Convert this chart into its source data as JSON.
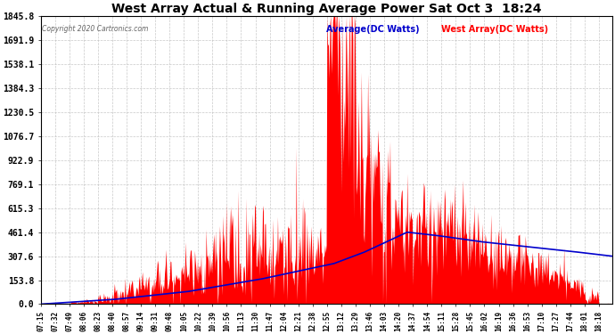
{
  "title": "West Array Actual & Running Average Power Sat Oct 3  18:24",
  "copyright": "Copyright 2020 Cartronics.com",
  "legend_average": "Average(DC Watts)",
  "legend_west": "West Array(DC Watts)",
  "y_max": 1845.8,
  "y_min": 0.0,
  "y_ticks": [
    0.0,
    153.8,
    307.6,
    461.4,
    615.3,
    769.1,
    922.9,
    1076.7,
    1230.5,
    1384.3,
    1538.1,
    1691.9,
    1845.8
  ],
  "x_labels": [
    "07:15",
    "07:32",
    "07:49",
    "08:06",
    "08:23",
    "08:40",
    "08:57",
    "09:14",
    "09:31",
    "09:48",
    "10:05",
    "10:22",
    "10:39",
    "10:56",
    "11:13",
    "11:30",
    "11:47",
    "12:04",
    "12:21",
    "12:38",
    "12:55",
    "13:12",
    "13:29",
    "13:46",
    "14:03",
    "14:20",
    "14:37",
    "14:54",
    "15:11",
    "15:28",
    "15:45",
    "16:02",
    "16:19",
    "16:36",
    "16:53",
    "17:10",
    "17:27",
    "17:44",
    "18:01",
    "18:18"
  ],
  "bg_color": "#ffffff",
  "fill_color": "#ff0000",
  "line_color": "#0000cc",
  "grid_color": "#bbbbbb",
  "title_color": "#000000",
  "figsize": [
    6.9,
    3.75
  ],
  "dpi": 100
}
